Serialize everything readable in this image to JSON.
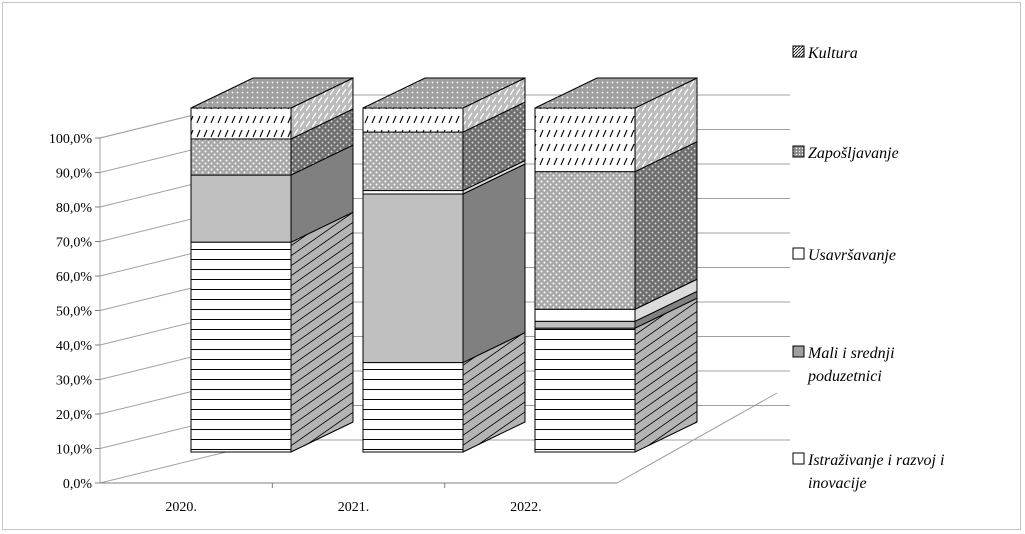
{
  "chart_data": {
    "type": "bar",
    "stacked": true,
    "three_d": true,
    "title": "",
    "xlabel": "",
    "ylabel": "",
    "ylim": [
      0,
      100
    ],
    "y_ticks": [
      "0,0%",
      "10,0%",
      "20,0%",
      "30,0%",
      "40,0%",
      "50,0%",
      "60,0%",
      "70,0%",
      "80,0%",
      "90,0%",
      "100,0%"
    ],
    "categories": [
      "2020.",
      "2021.",
      "2022."
    ],
    "series": [
      {
        "name": "Istraživanje i razvoj i inovacije",
        "values": [
          61.0,
          26.0,
          36.0
        ],
        "pattern": "hlines",
        "color": "#ffffff"
      },
      {
        "name": "Mali i srednji poduzetnici",
        "values": [
          19.5,
          49.0,
          2.0
        ],
        "pattern": "solid",
        "color": "#c0c0c0"
      },
      {
        "name": "Usavršavanje",
        "values": [
          0,
          1.0,
          3.5
        ],
        "pattern": "plain",
        "color": "#ffffff"
      },
      {
        "name": "Zapošljavanje",
        "values": [
          10.5,
          17.0,
          40.0
        ],
        "pattern": "dots",
        "color": "#a8a8a8"
      },
      {
        "name": "Kultura",
        "values": [
          9.0,
          7.0,
          18.5
        ],
        "pattern": "diag",
        "color": "#ffffff"
      }
    ],
    "legend": {
      "position": "right",
      "order": [
        "Kultura",
        "Zapošljavanje",
        "Usavršavanje",
        "Mali i srednji poduzetnici",
        "Istraživanje i razvoj i inovacije"
      ]
    },
    "grid": true
  }
}
